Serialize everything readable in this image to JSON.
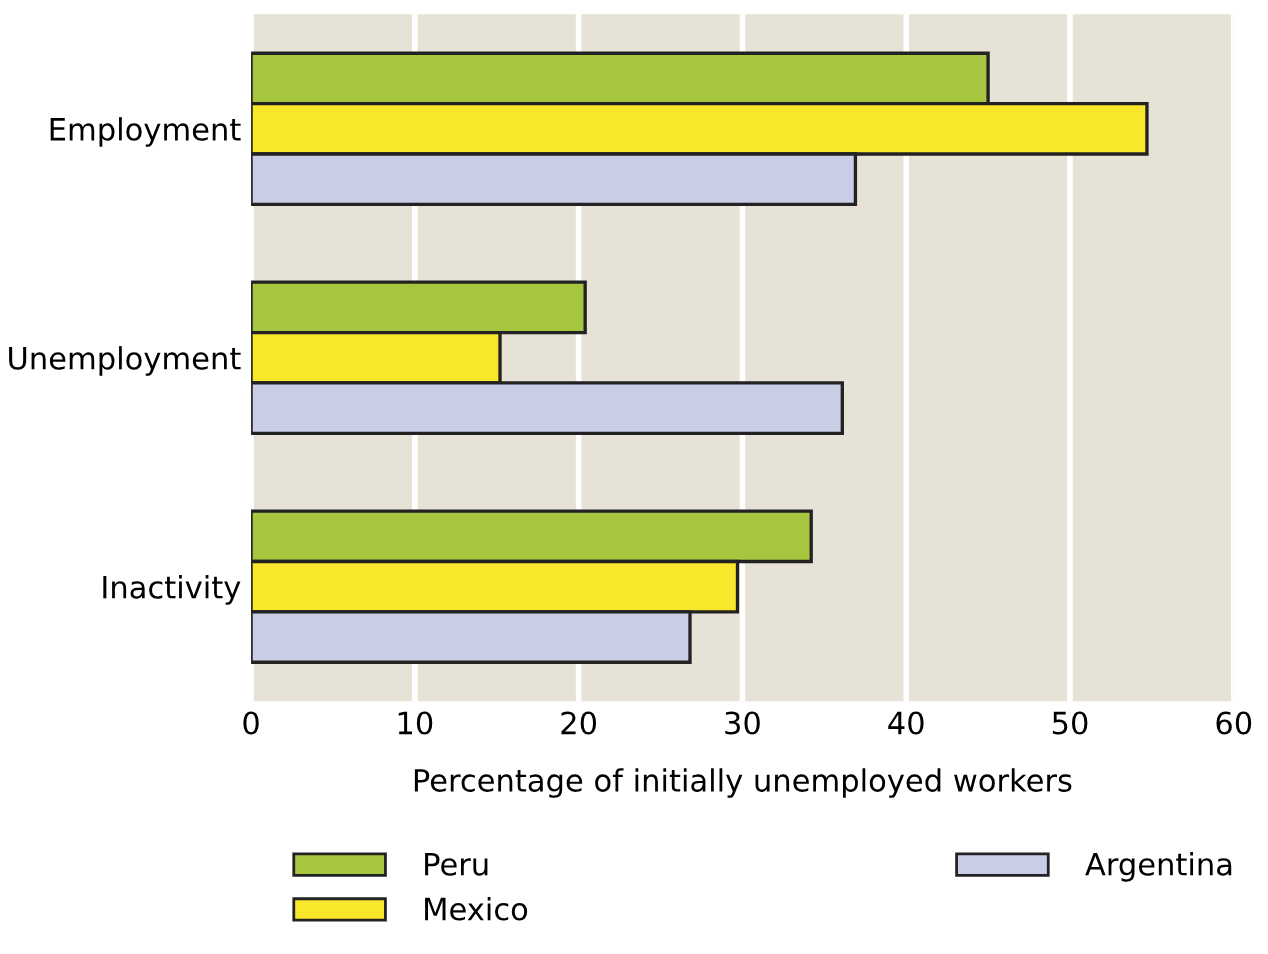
{
  "chart_data": {
    "type": "bar",
    "orientation": "horizontal",
    "categories": [
      "Employment",
      "Unemployment",
      "Inactivity"
    ],
    "series": [
      {
        "name": "Peru",
        "color": "#a6c640",
        "values": [
          45,
          20.4,
          34.2
        ]
      },
      {
        "name": "Mexico",
        "color": "#f9e72b",
        "values": [
          54.7,
          15.2,
          29.7
        ]
      },
      {
        "name": "Argentina",
        "color": "#c9cde6",
        "values": [
          36.9,
          36.1,
          26.8
        ]
      }
    ],
    "xlabel": "Percentage of initially unemployed workers",
    "xlim": [
      0,
      60
    ],
    "xticks": [
      0,
      10,
      20,
      30,
      40,
      50,
      60
    ],
    "grid": "x",
    "legend": "bottom"
  }
}
